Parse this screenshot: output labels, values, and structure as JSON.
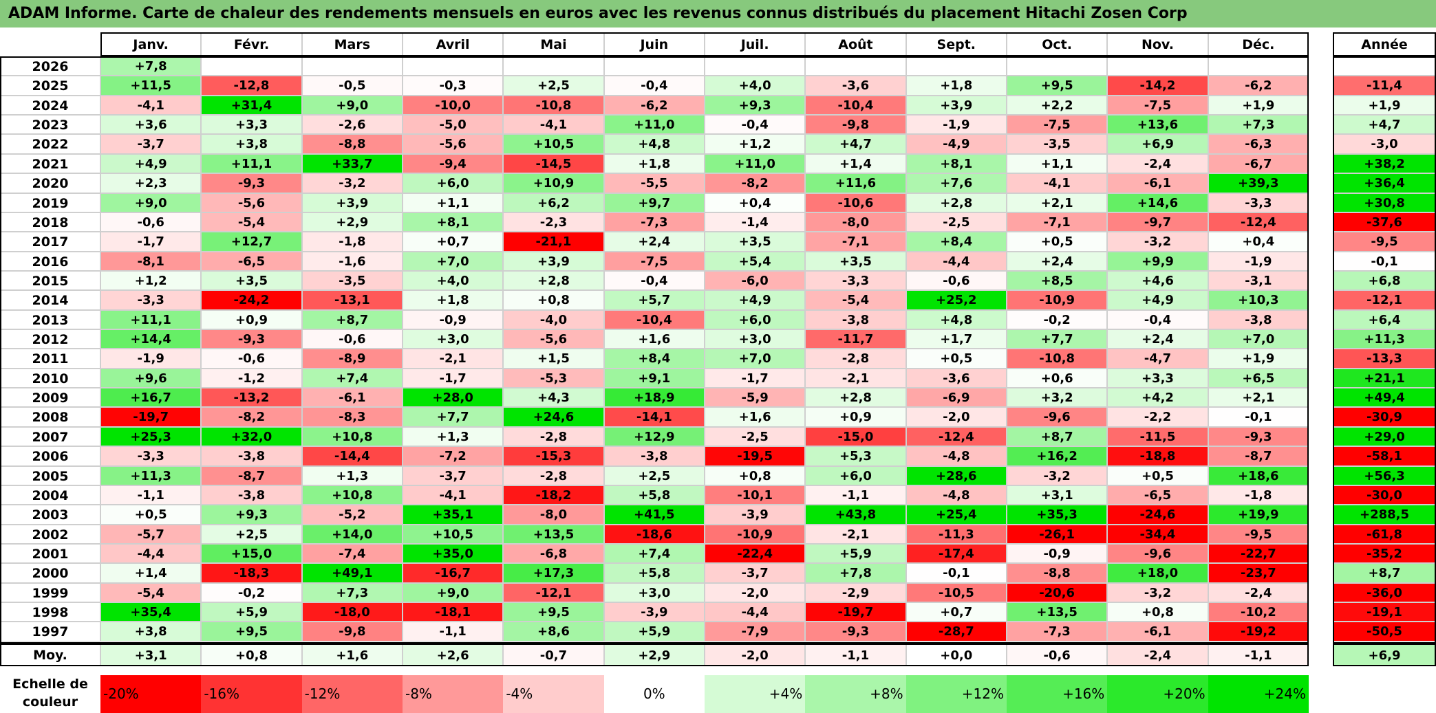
{
  "title": "ADAM Informe. Carte de chaleur des rendements mensuels en euros avec les revenus connus distribués du placement Hitachi Zosen Corp",
  "chart_data": {
    "type": "heatmap",
    "title": "ADAM Informe. Carte de chaleur des rendements mensuels en euros avec les revenus connus distribués du placement Hitachi Zosen Corp",
    "months": [
      "Janv.",
      "Févr.",
      "Mars",
      "Avril",
      "Mai",
      "Juin",
      "Juil.",
      "Août",
      "Sept.",
      "Oct.",
      "Nov.",
      "Déc."
    ],
    "year_header": "Année",
    "rows": [
      {
        "year": "2026",
        "values": [
          "+7,8",
          "",
          "",
          "",
          "",
          "",
          "",
          "",
          "",
          "",
          "",
          ""
        ],
        "annual": ""
      },
      {
        "year": "2025",
        "values": [
          "+11,5",
          "-12,8",
          "-0,5",
          "-0,3",
          "+2,5",
          "-0,4",
          "+4,0",
          "-3,6",
          "+1,8",
          "+9,5",
          "-14,2",
          "-6,2"
        ],
        "annual": "-11,4"
      },
      {
        "year": "2024",
        "values": [
          "-4,1",
          "+31,4",
          "+9,0",
          "-10,0",
          "-10,8",
          "-6,2",
          "+9,3",
          "-10,4",
          "+3,9",
          "+2,2",
          "-7,5",
          "+1,9"
        ],
        "annual": "+1,9"
      },
      {
        "year": "2023",
        "values": [
          "+3,6",
          "+3,3",
          "-2,6",
          "-5,0",
          "-4,1",
          "+11,0",
          "-0,4",
          "-9,8",
          "-1,9",
          "-7,5",
          "+13,6",
          "+7,3"
        ],
        "annual": "+4,7"
      },
      {
        "year": "2022",
        "values": [
          "-3,7",
          "+3,8",
          "-8,8",
          "-5,6",
          "+10,5",
          "+4,8",
          "+1,2",
          "+4,7",
          "-4,9",
          "-3,5",
          "+6,9",
          "-6,3"
        ],
        "annual": "-3,0"
      },
      {
        "year": "2021",
        "values": [
          "+4,9",
          "+11,1",
          "+33,7",
          "-9,4",
          "-14,5",
          "+1,8",
          "+11,0",
          "+1,4",
          "+8,1",
          "+1,1",
          "-2,4",
          "-6,7"
        ],
        "annual": "+38,2"
      },
      {
        "year": "2020",
        "values": [
          "+2,3",
          "-9,3",
          "-3,2",
          "+6,0",
          "+10,9",
          "-5,5",
          "-8,2",
          "+11,6",
          "+7,6",
          "-4,1",
          "-6,1",
          "+39,3"
        ],
        "annual": "+36,4"
      },
      {
        "year": "2019",
        "values": [
          "+9,0",
          "-5,6",
          "+3,9",
          "+1,1",
          "+6,2",
          "+9,7",
          "+0,4",
          "-10,6",
          "+2,8",
          "+2,1",
          "+14,6",
          "-3,3"
        ],
        "annual": "+30,8"
      },
      {
        "year": "2018",
        "values": [
          "-0,6",
          "-5,4",
          "+2,9",
          "+8,1",
          "-2,3",
          "-7,3",
          "-1,4",
          "-8,0",
          "-2,5",
          "-7,1",
          "-9,7",
          "-12,4"
        ],
        "annual": "-37,6"
      },
      {
        "year": "2017",
        "values": [
          "-1,7",
          "+12,7",
          "-1,8",
          "+0,7",
          "-21,1",
          "+2,4",
          "+3,5",
          "-7,1",
          "+8,4",
          "+0,5",
          "-3,2",
          "+0,4"
        ],
        "annual": "-9,5"
      },
      {
        "year": "2016",
        "values": [
          "-8,1",
          "-6,5",
          "-1,6",
          "+7,0",
          "+3,9",
          "-7,5",
          "+5,4",
          "+3,5",
          "-4,4",
          "+2,4",
          "+9,9",
          "-1,9"
        ],
        "annual": "-0,1"
      },
      {
        "year": "2015",
        "values": [
          "+1,2",
          "+3,5",
          "-3,5",
          "+4,0",
          "+2,8",
          "-0,4",
          "-6,0",
          "-3,3",
          "-0,6",
          "+8,5",
          "+4,6",
          "-3,1"
        ],
        "annual": "+6,8"
      },
      {
        "year": "2014",
        "values": [
          "-3,3",
          "-24,2",
          "-13,1",
          "+1,8",
          "+0,8",
          "+5,7",
          "+4,9",
          "-5,4",
          "+25,2",
          "-10,9",
          "+4,9",
          "+10,3"
        ],
        "annual": "-12,1"
      },
      {
        "year": "2013",
        "values": [
          "+11,1",
          "+0,9",
          "+8,7",
          "-0,9",
          "-4,0",
          "-10,4",
          "+6,0",
          "-3,8",
          "+4,8",
          "-0,2",
          "-0,4",
          "-3,8"
        ],
        "annual": "+6,4"
      },
      {
        "year": "2012",
        "values": [
          "+14,4",
          "-9,3",
          "-0,6",
          "+3,0",
          "-5,6",
          "+1,6",
          "+3,0",
          "-11,7",
          "+1,7",
          "+7,7",
          "+2,4",
          "+7,0"
        ],
        "annual": "+11,3"
      },
      {
        "year": "2011",
        "values": [
          "-1,9",
          "-0,6",
          "-8,9",
          "-2,1",
          "+1,5",
          "+8,4",
          "+7,0",
          "-2,8",
          "+0,5",
          "-10,8",
          "-4,7",
          "+1,9"
        ],
        "annual": "-13,3"
      },
      {
        "year": "2010",
        "values": [
          "+9,6",
          "-1,2",
          "+7,4",
          "-1,7",
          "-5,3",
          "+9,1",
          "-1,7",
          "-2,1",
          "-3,6",
          "+0,6",
          "+3,3",
          "+6,5"
        ],
        "annual": "+21,1"
      },
      {
        "year": "2009",
        "values": [
          "+16,7",
          "-13,2",
          "-6,1",
          "+28,0",
          "+4,3",
          "+18,9",
          "-5,9",
          "+2,8",
          "-6,9",
          "+3,2",
          "+4,2",
          "+2,1"
        ],
        "annual": "+49,4"
      },
      {
        "year": "2008",
        "values": [
          "-19,7",
          "-8,2",
          "-8,3",
          "+7,7",
          "+24,6",
          "-14,1",
          "+1,6",
          "+0,9",
          "-2,0",
          "-9,6",
          "-2,2",
          "-0,1"
        ],
        "annual": "-30,9"
      },
      {
        "year": "2007",
        "values": [
          "+25,3",
          "+32,0",
          "+10,8",
          "+1,3",
          "-2,8",
          "+12,9",
          "-2,5",
          "-15,0",
          "-12,4",
          "+8,7",
          "-11,5",
          "-9,3"
        ],
        "annual": "+29,0"
      },
      {
        "year": "2006",
        "values": [
          "-3,3",
          "-3,8",
          "-14,4",
          "-7,2",
          "-15,3",
          "-3,8",
          "-19,5",
          "+5,3",
          "-4,8",
          "+16,2",
          "-18,8",
          "-8,7"
        ],
        "annual": "-58,1"
      },
      {
        "year": "2005",
        "values": [
          "+11,3",
          "-8,7",
          "+1,3",
          "-3,7",
          "-2,8",
          "+2,5",
          "+0,8",
          "+6,0",
          "+28,6",
          "-3,2",
          "+0,5",
          "+18,6"
        ],
        "annual": "+56,3"
      },
      {
        "year": "2004",
        "values": [
          "-1,1",
          "-3,8",
          "+10,8",
          "-4,1",
          "-18,2",
          "+5,8",
          "-10,1",
          "-1,1",
          "-4,8",
          "+3,1",
          "-6,5",
          "-1,8"
        ],
        "annual": "-30,0"
      },
      {
        "year": "2003",
        "values": [
          "+0,5",
          "+9,3",
          "-5,2",
          "+35,1",
          "-8,0",
          "+41,5",
          "-3,9",
          "+43,8",
          "+25,4",
          "+35,3",
          "-24,6",
          "+19,9"
        ],
        "annual": "+288,5"
      },
      {
        "year": "2002",
        "values": [
          "-5,7",
          "+2,5",
          "+14,0",
          "+10,5",
          "+13,5",
          "-18,6",
          "-10,9",
          "-2,1",
          "-11,3",
          "-26,1",
          "-34,4",
          "-9,5"
        ],
        "annual": "-61,8"
      },
      {
        "year": "2001",
        "values": [
          "-4,4",
          "+15,0",
          "-7,4",
          "+35,0",
          "-6,8",
          "+7,4",
          "-22,4",
          "+5,9",
          "-17,4",
          "-0,9",
          "-9,6",
          "-22,7"
        ],
        "annual": "-35,2"
      },
      {
        "year": "2000",
        "values": [
          "+1,4",
          "-18,3",
          "+49,1",
          "-16,7",
          "+17,3",
          "+5,8",
          "-3,7",
          "+7,8",
          "-0,1",
          "-8,8",
          "+18,0",
          "-23,7"
        ],
        "annual": "+8,7"
      },
      {
        "year": "1999",
        "values": [
          "-5,4",
          "-0,2",
          "+7,3",
          "+9,0",
          "-12,1",
          "+3,0",
          "-2,0",
          "-2,9",
          "-10,5",
          "-20,6",
          "-3,2",
          "-2,4"
        ],
        "annual": "-36,0"
      },
      {
        "year": "1998",
        "values": [
          "+35,4",
          "+5,9",
          "-18,0",
          "-18,1",
          "+9,5",
          "-3,9",
          "-4,4",
          "-19,7",
          "+0,7",
          "+13,5",
          "+0,8",
          "-10,2"
        ],
        "annual": "-19,1"
      },
      {
        "year": "1997",
        "values": [
          "+3,8",
          "+9,5",
          "-9,8",
          "-1,1",
          "+8,6",
          "+5,9",
          "-7,9",
          "-9,3",
          "-28,7",
          "-7,3",
          "-6,1",
          "-19,2"
        ],
        "annual": "-50,5"
      }
    ],
    "average": {
      "label": "Moy.",
      "values": [
        "+3,1",
        "+0,8",
        "+1,6",
        "+2,6",
        "-0,7",
        "+2,9",
        "-2,0",
        "-1,1",
        "+0,0",
        "-0,6",
        "-2,4",
        "-1,1"
      ],
      "annual": "+6,9"
    },
    "scale": {
      "label_line1": "Echelle de",
      "label_line2": "couleur",
      "ticks": [
        "-20%",
        "-16%",
        "-12%",
        "-8%",
        "-4%",
        "0%",
        "+4%",
        "+8%",
        "+12%",
        "+16%",
        "+20%",
        "+24%"
      ],
      "tick_values": [
        -20,
        -16,
        -12,
        -8,
        -4,
        0,
        4,
        8,
        12,
        16,
        20,
        24
      ]
    },
    "colors": {
      "title_bg": "#87c97d",
      "negative_max": "#ff0000",
      "neutral": "#ffffff",
      "positive_max": "#00e400"
    }
  }
}
